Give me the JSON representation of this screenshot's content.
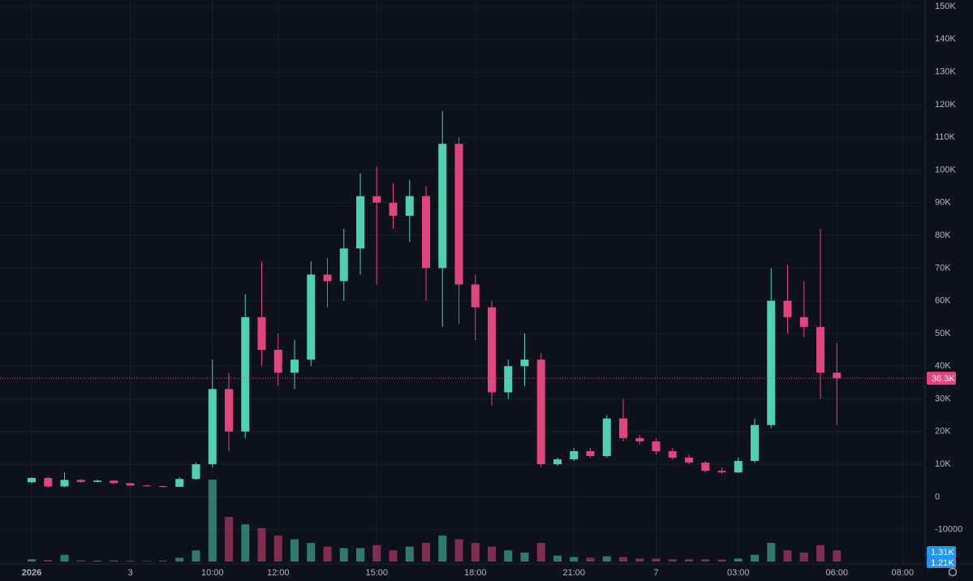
{
  "chart_data": {
    "type": "candlestick",
    "categories": [
      "2026",
      null,
      null,
      null,
      null,
      null,
      "3",
      null,
      null,
      null,
      null,
      "10:00",
      null,
      null,
      null,
      "12:00",
      null,
      null,
      null,
      null,
      null,
      "15:00",
      null,
      null,
      null,
      null,
      null,
      "18:00",
      null,
      null,
      null,
      null,
      null,
      "21:00",
      null,
      null,
      null,
      null,
      "7",
      null,
      null,
      null,
      null,
      "03:00",
      null,
      null,
      null,
      null,
      null,
      "06:00",
      null,
      null,
      null,
      "08:00"
    ],
    "open": [
      4500,
      5800,
      3200,
      5200,
      4600,
      5000,
      4200,
      3500,
      3300,
      3100,
      5500,
      10000,
      33000,
      20000,
      55000,
      45000,
      38000,
      42000,
      68000,
      66000,
      76000,
      92000,
      90000,
      86000,
      92000,
      70000,
      108000,
      65000,
      58000,
      32000,
      40000,
      42000,
      10000,
      11500,
      14000,
      12500,
      24000,
      18000,
      17000,
      14000,
      12000,
      10500,
      8000,
      7500,
      11000,
      22000,
      60000,
      55000,
      52000,
      38000,
      null,
      null,
      null,
      null
    ],
    "high": [
      6000,
      6200,
      7500,
      5500,
      5300,
      5100,
      4300,
      3700,
      3500,
      6000,
      10500,
      42000,
      38000,
      62000,
      72000,
      50000,
      48000,
      72000,
      73000,
      82000,
      99000,
      101000,
      96000,
      97000,
      95000,
      118000,
      110000,
      68000,
      60000,
      42000,
      50000,
      44000,
      12000,
      15000,
      15000,
      25000,
      30000,
      19000,
      18000,
      15000,
      13000,
      11000,
      9000,
      12000,
      24000,
      70000,
      71000,
      66000,
      82000,
      47000,
      null,
      null,
      null,
      null
    ],
    "low": [
      4200,
      2800,
      3000,
      4300,
      4400,
      4000,
      3400,
      3100,
      2900,
      3000,
      5200,
      9000,
      14000,
      18000,
      40000,
      34000,
      33000,
      40000,
      58000,
      60000,
      68000,
      65000,
      82000,
      78000,
      60000,
      52000,
      53000,
      48000,
      28000,
      30000,
      34000,
      9000,
      9500,
      11000,
      12000,
      12000,
      17000,
      16000,
      13000,
      11500,
      10000,
      7500,
      7000,
      7300,
      10500,
      21000,
      50000,
      49000,
      30000,
      22000,
      null,
      null,
      null,
      null
    ],
    "close": [
      5800,
      3200,
      5200,
      4600,
      5000,
      4200,
      3500,
      3300,
      3100,
      5500,
      10000,
      33000,
      20000,
      55000,
      45000,
      38000,
      42000,
      68000,
      66000,
      76000,
      92000,
      90000,
      86000,
      92000,
      70000,
      108000,
      65000,
      58000,
      32000,
      40000,
      42000,
      10000,
      11500,
      14000,
      12500,
      24000,
      18000,
      17000,
      14000,
      12000,
      10500,
      8000,
      7500,
      11000,
      22000,
      60000,
      55000,
      52000,
      38000,
      36300,
      null,
      null,
      null,
      null
    ],
    "volume": [
      300,
      200,
      900,
      150,
      100,
      150,
      100,
      80,
      120,
      500,
      1500,
      11000,
      6000,
      5000,
      4500,
      3500,
      3000,
      2500,
      2000,
      1800,
      1800,
      2200,
      1500,
      2000,
      2500,
      3500,
      3000,
      2500,
      2000,
      1500,
      1200,
      2500,
      800,
      600,
      500,
      700,
      600,
      400,
      400,
      300,
      300,
      300,
      250,
      400,
      900,
      2500,
      1500,
      1200,
      2200,
      1500,
      null,
      null,
      null,
      null
    ],
    "up_color": "#4fd1b0",
    "down_color": "#e0457b",
    "ylim": [
      -20000,
      150000
    ],
    "yticks": [
      {
        "value": 150000,
        "label": "150K"
      },
      {
        "value": 140000,
        "label": "140K"
      },
      {
        "value": 130000,
        "label": "130K"
      },
      {
        "value": 120000,
        "label": "120K"
      },
      {
        "value": 110000,
        "label": "110K"
      },
      {
        "value": 100000,
        "label": "100K"
      },
      {
        "value": 90000,
        "label": "90K"
      },
      {
        "value": 80000,
        "label": "80K"
      },
      {
        "value": 70000,
        "label": "70K"
      },
      {
        "value": 60000,
        "label": "60K"
      },
      {
        "value": 50000,
        "label": "50K"
      },
      {
        "value": 40000,
        "label": "40K"
      },
      {
        "value": 30000,
        "label": "30K"
      },
      {
        "value": 20000,
        "label": "20K"
      },
      {
        "value": 10000,
        "label": "10K"
      },
      0,
      -10000
    ],
    "volume_ylim": [
      0,
      12000
    ],
    "current_price": {
      "value": 36300,
      "label": "36.3K"
    },
    "volume_labels": [
      {
        "value": 1310,
        "label": "1.31K"
      },
      {
        "value": 1210,
        "label": "1.21K"
      }
    ],
    "grid": true
  }
}
